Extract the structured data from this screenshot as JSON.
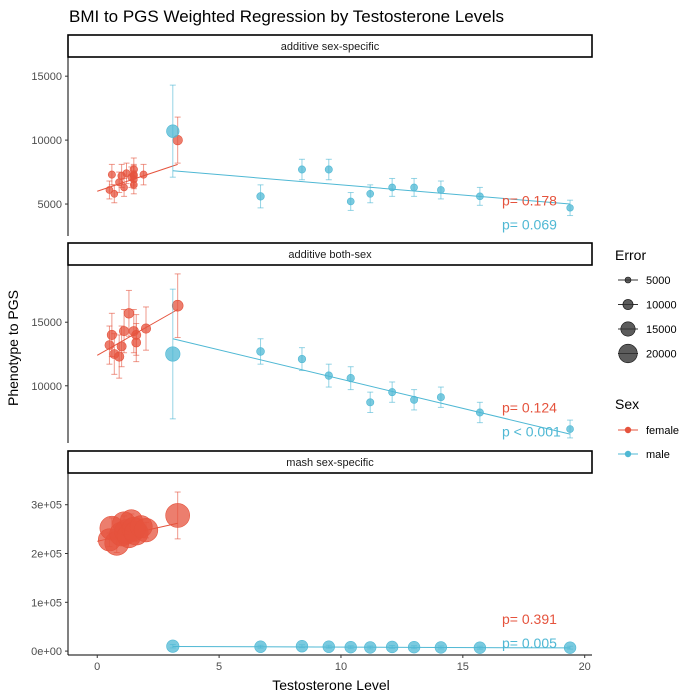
{
  "chart_data": {
    "type": "scatter",
    "title": "BMI to PGS Weighted Regression by Testosterone Levels",
    "xlabel": "Testosterone Level",
    "ylabel": "Phenotype to PGS",
    "xlim": [
      -1.2,
      20.3
    ],
    "xticks": [
      0,
      5,
      10,
      15,
      20
    ],
    "grid": false,
    "colors": {
      "female": "#e5533d",
      "male": "#4fb8d4"
    },
    "legend": {
      "placement": "right",
      "error": {
        "title": "Error",
        "items": [
          {
            "label": "5000",
            "value": 5000
          },
          {
            "label": "10000",
            "value": 10000
          },
          {
            "label": "15000",
            "value": 15000
          },
          {
            "label": "20000",
            "value": 20000
          }
        ]
      },
      "sex": {
        "title": "Sex",
        "items": [
          {
            "label": "female",
            "key": "female"
          },
          {
            "label": "male",
            "key": "male"
          }
        ]
      }
    },
    "panels": [
      {
        "strip": "additive sex-specific",
        "ylim": [
          2500,
          16500
        ],
        "yticks": [
          5000,
          10000,
          15000
        ],
        "ytick_labels": [
          "5000",
          "10000",
          "15000"
        ],
        "pvalues": {
          "female": "p= 0.178",
          "male": "p= 0.069"
        },
        "series": [
          {
            "name": "female",
            "points": [
              {
                "x": 0.5,
                "y": 6100,
                "err": 700
              },
              {
                "x": 0.6,
                "y": 7300,
                "err": 800
              },
              {
                "x": 0.7,
                "y": 5800,
                "err": 700
              },
              {
                "x": 0.9,
                "y": 6700,
                "err": 800
              },
              {
                "x": 1.0,
                "y": 7200,
                "err": 900
              },
              {
                "x": 1.1,
                "y": 6300,
                "err": 700
              },
              {
                "x": 1.2,
                "y": 7400,
                "err": 800
              },
              {
                "x": 1.4,
                "y": 7100,
                "err": 800
              },
              {
                "x": 1.5,
                "y": 7300,
                "err": 800
              },
              {
                "x": 1.5,
                "y": 6900,
                "err": 700
              },
              {
                "x": 1.5,
                "y": 7700,
                "err": 900
              },
              {
                "x": 1.5,
                "y": 7200,
                "err": 800
              },
              {
                "x": 1.5,
                "y": 6500,
                "err": 700
              },
              {
                "x": 1.9,
                "y": 7300,
                "err": 800
              },
              {
                "x": 3.3,
                "y": 10000,
                "err": 1800
              }
            ],
            "fit": {
              "x": [
                0.0,
                3.3
              ],
              "y": [
                6000,
                8100
              ]
            }
          },
          {
            "name": "male",
            "points": [
              {
                "x": 3.1,
                "y": 10700,
                "err": 3600
              },
              {
                "x": 6.7,
                "y": 5600,
                "err": 900
              },
              {
                "x": 8.4,
                "y": 7700,
                "err": 800
              },
              {
                "x": 9.5,
                "y": 7700,
                "err": 800
              },
              {
                "x": 10.4,
                "y": 5200,
                "err": 700
              },
              {
                "x": 11.2,
                "y": 5800,
                "err": 700
              },
              {
                "x": 12.1,
                "y": 6300,
                "err": 700
              },
              {
                "x": 13.0,
                "y": 6300,
                "err": 700
              },
              {
                "x": 14.1,
                "y": 6100,
                "err": 700
              },
              {
                "x": 15.7,
                "y": 5600,
                "err": 700
              },
              {
                "x": 19.4,
                "y": 4700,
                "err": 600
              }
            ],
            "fit": {
              "x": [
                3.1,
                19.4
              ],
              "y": [
                7600,
                5000
              ]
            }
          }
        ]
      },
      {
        "strip": "additive both-sex",
        "ylim": [
          5500,
          19500
        ],
        "yticks": [
          10000,
          15000
        ],
        "ytick_labels": [
          "10000",
          "15000"
        ],
        "pvalues": {
          "female": "p= 0.124",
          "male": "p < 0.001"
        },
        "series": [
          {
            "name": "female",
            "points": [
              {
                "x": 0.5,
                "y": 13200,
                "err": 1500
              },
              {
                "x": 0.6,
                "y": 14000,
                "err": 1700
              },
              {
                "x": 0.7,
                "y": 12500,
                "err": 1600
              },
              {
                "x": 0.9,
                "y": 12300,
                "err": 1700
              },
              {
                "x": 1.0,
                "y": 13100,
                "err": 1600
              },
              {
                "x": 1.1,
                "y": 14300,
                "err": 1700
              },
              {
                "x": 1.3,
                "y": 15700,
                "err": 1800
              },
              {
                "x": 1.5,
                "y": 14300,
                "err": 1700
              },
              {
                "x": 1.6,
                "y": 14000,
                "err": 1600
              },
              {
                "x": 1.6,
                "y": 13400,
                "err": 1500
              },
              {
                "x": 2.0,
                "y": 14500,
                "err": 1700
              },
              {
                "x": 3.3,
                "y": 16300,
                "err": 2500
              }
            ],
            "fit": {
              "x": [
                0.0,
                3.3
              ],
              "y": [
                12400,
                16000
              ]
            }
          },
          {
            "name": "male",
            "points": [
              {
                "x": 3.1,
                "y": 12500,
                "err": 5100
              },
              {
                "x": 6.7,
                "y": 12700,
                "err": 1000
              },
              {
                "x": 8.4,
                "y": 12100,
                "err": 900
              },
              {
                "x": 9.5,
                "y": 10800,
                "err": 900
              },
              {
                "x": 10.4,
                "y": 10600,
                "err": 900
              },
              {
                "x": 11.2,
                "y": 8700,
                "err": 800
              },
              {
                "x": 12.1,
                "y": 9500,
                "err": 800
              },
              {
                "x": 13.0,
                "y": 8900,
                "err": 800
              },
              {
                "x": 14.1,
                "y": 9100,
                "err": 800
              },
              {
                "x": 15.7,
                "y": 7900,
                "err": 800
              },
              {
                "x": 19.4,
                "y": 6600,
                "err": 700
              }
            ],
            "fit": {
              "x": [
                3.1,
                19.4
              ],
              "y": [
                13700,
                6200
              ]
            }
          }
        ]
      },
      {
        "strip": "mash sex-specific",
        "ylim": [
          -8000,
          365000
        ],
        "yticks": [
          0,
          100000,
          200000,
          300000
        ],
        "ytick_labels": [
          "0e+00",
          "1e+05",
          "2e+05",
          "3e+05"
        ],
        "pvalues": {
          "female": "p= 0.391",
          "male": "p= 0.005"
        },
        "series": [
          {
            "name": "female",
            "points": [
              {
                "x": 0.5,
                "y": 228000,
                "err": 14000
              },
              {
                "x": 0.6,
                "y": 252000,
                "err": 21000
              },
              {
                "x": 0.8,
                "y": 221000,
                "err": 19000
              },
              {
                "x": 1.0,
                "y": 240000,
                "err": 20000
              },
              {
                "x": 1.1,
                "y": 262000,
                "err": 15000
              },
              {
                "x": 1.2,
                "y": 245000,
                "err": 17000
              },
              {
                "x": 1.3,
                "y": 236000,
                "err": 16000
              },
              {
                "x": 1.4,
                "y": 267000,
                "err": 14000
              },
              {
                "x": 1.5,
                "y": 250000,
                "err": 16000
              },
              {
                "x": 1.6,
                "y": 242000,
                "err": 18000
              },
              {
                "x": 1.8,
                "y": 255000,
                "err": 14000
              },
              {
                "x": 2.0,
                "y": 248000,
                "err": 16000
              },
              {
                "x": 3.3,
                "y": 278000,
                "err": 48000
              }
            ],
            "fit": {
              "x": [
                0.0,
                3.3
              ],
              "y": [
                225000,
                262000
              ]
            }
          },
          {
            "name": "male",
            "points": [
              {
                "x": 3.1,
                "y": 10000,
                "err": 3500
              },
              {
                "x": 6.7,
                "y": 9000,
                "err": 3000
              },
              {
                "x": 8.4,
                "y": 10000,
                "err": 3000
              },
              {
                "x": 9.5,
                "y": 9000,
                "err": 3000
              },
              {
                "x": 10.4,
                "y": 8000,
                "err": 3000
              },
              {
                "x": 11.2,
                "y": 7500,
                "err": 3000
              },
              {
                "x": 12.1,
                "y": 8500,
                "err": 3000
              },
              {
                "x": 13.0,
                "y": 8000,
                "err": 3000
              },
              {
                "x": 14.1,
                "y": 7500,
                "err": 3000
              },
              {
                "x": 15.7,
                "y": 7000,
                "err": 3000
              },
              {
                "x": 19.4,
                "y": 7000,
                "err": 3000
              }
            ],
            "fit": {
              "x": [
                3.1,
                19.4
              ],
              "y": [
                9500,
                6500
              ]
            }
          }
        ]
      }
    ]
  }
}
